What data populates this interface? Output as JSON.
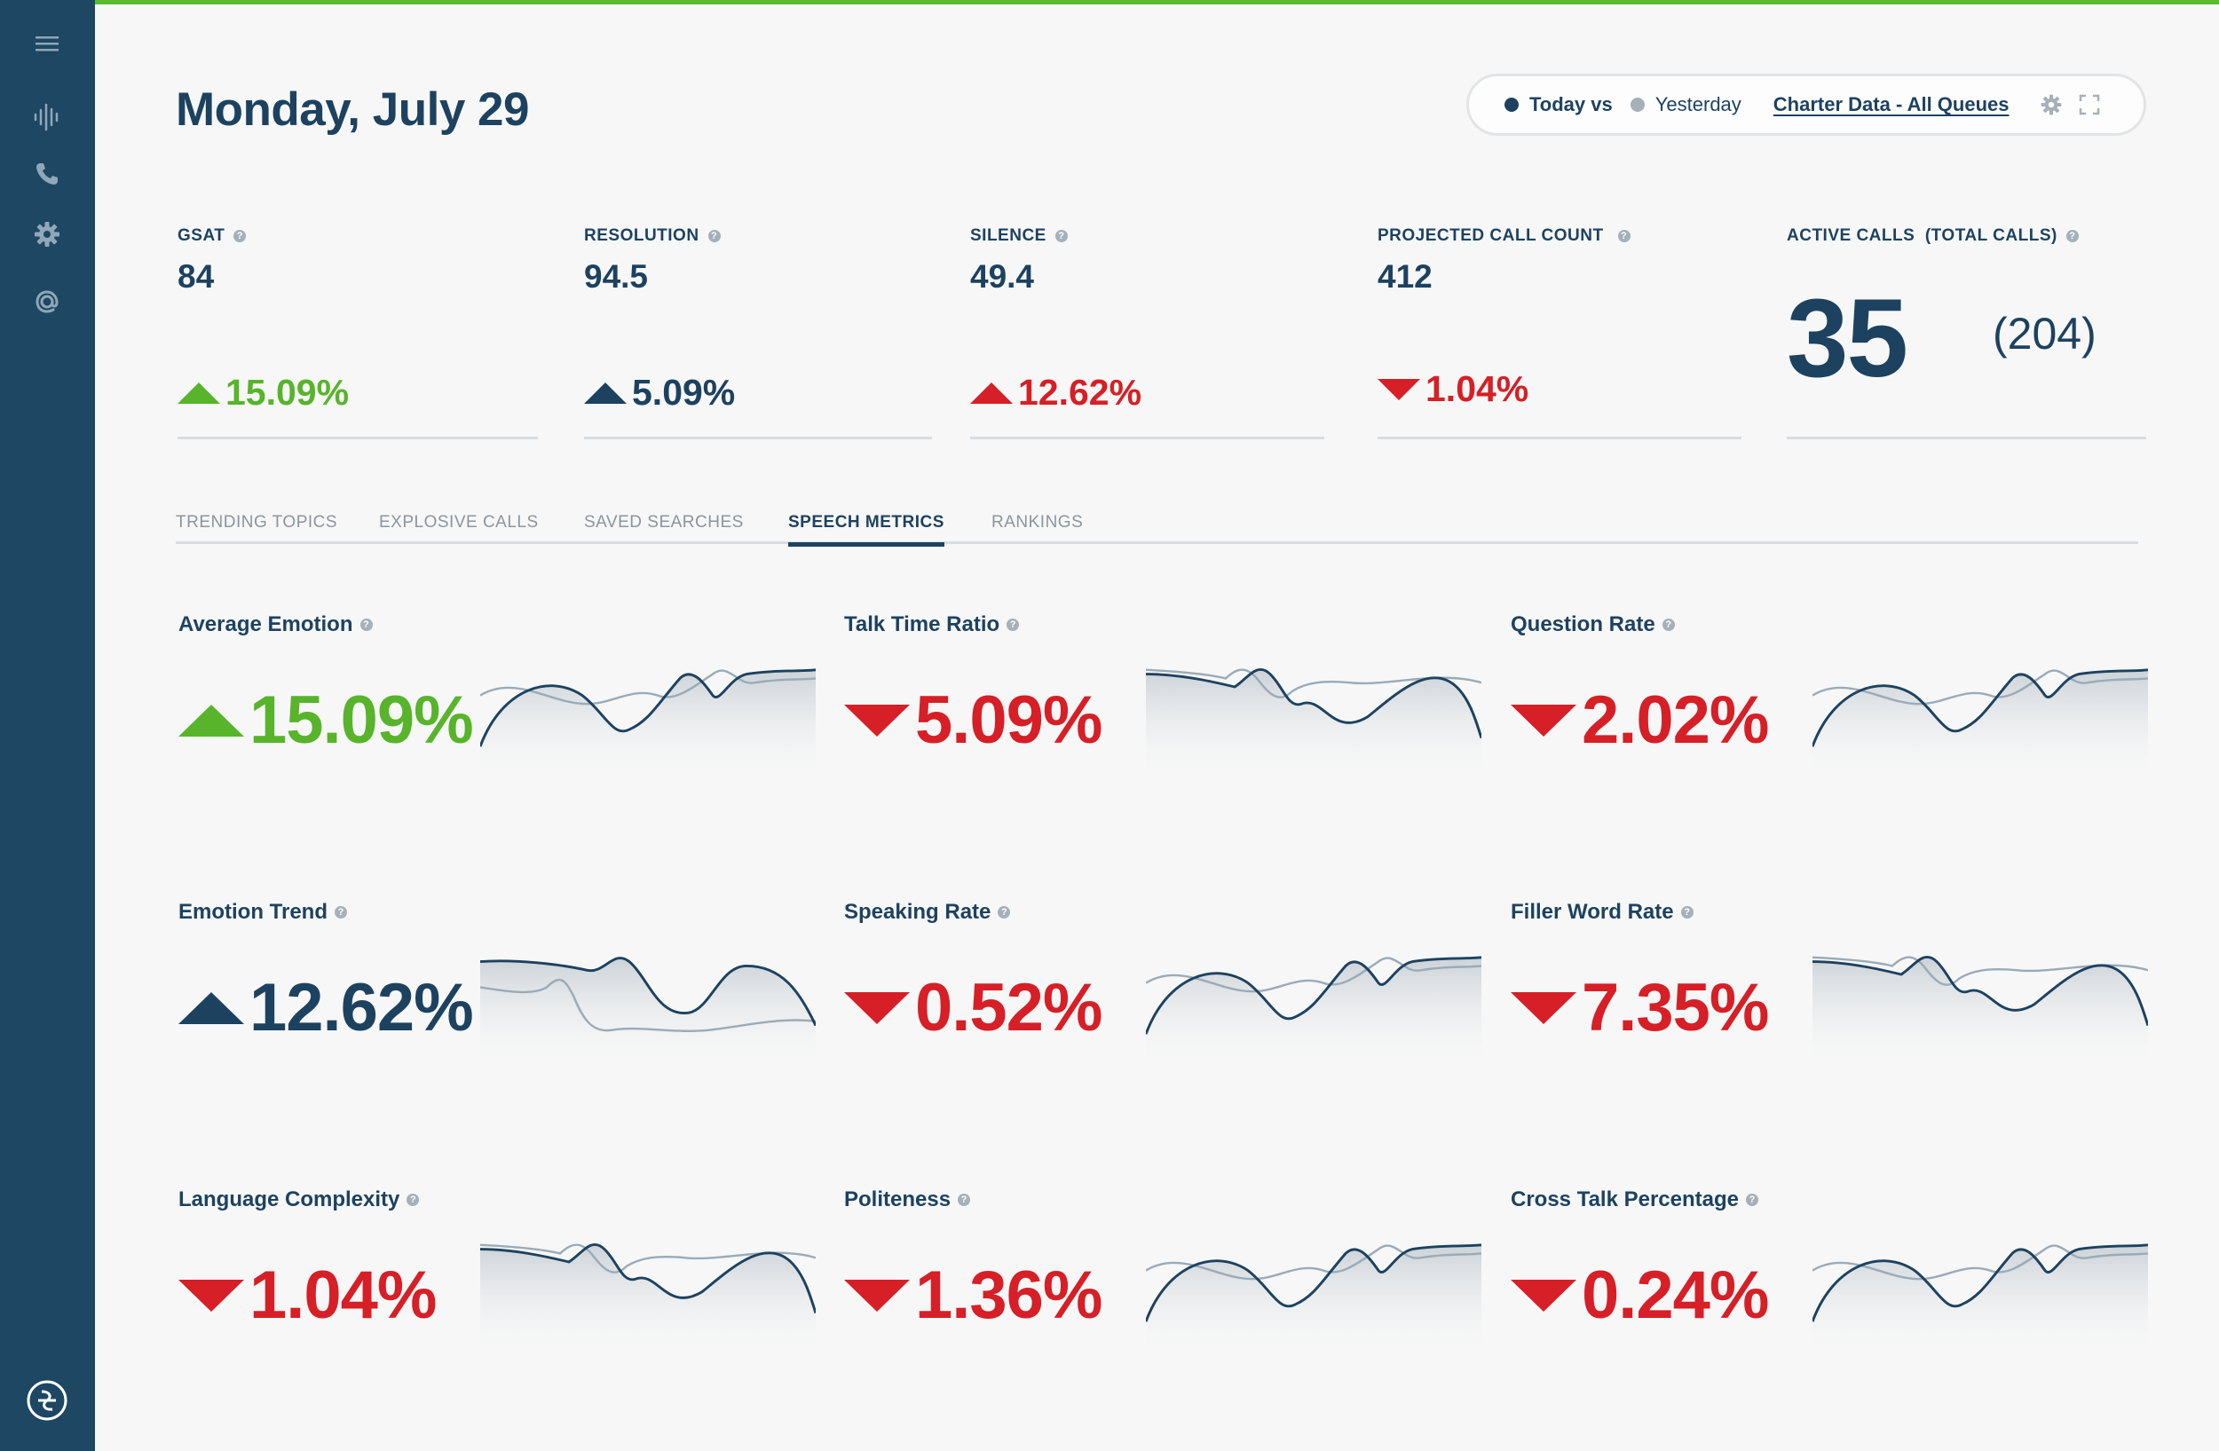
{
  "sidebar": {
    "icons": [
      "menu-icon",
      "waveform-icon",
      "phone-icon",
      "gear-icon",
      "at-icon",
      "logo-icon"
    ]
  },
  "header": {
    "title": "Monday, July 29",
    "compare": {
      "today_label": "Today vs",
      "yesterday_label": "Yesterday",
      "queue_label": "Charter Data - All Queues"
    },
    "colors": {
      "today": "#1d4260",
      "yesterday": "#a6b0b8",
      "accent": "#5bbb2e"
    }
  },
  "kpis": [
    {
      "label": "GSAT",
      "value": "84",
      "change": "15.09%",
      "direction": "up",
      "color": "#57b42b"
    },
    {
      "label": "RESOLUTION",
      "value": "94.5",
      "change": "5.09%",
      "direction": "up",
      "color": "#1d4260"
    },
    {
      "label": "SILENCE",
      "value": "49.4",
      "change": "12.62%",
      "direction": "up",
      "color": "#d61f26"
    },
    {
      "label": "PROJECTED CALL COUNT",
      "value": "412",
      "change": "1.04%",
      "direction": "down",
      "color": "#d61f26"
    }
  ],
  "active_calls": {
    "label": "ACTIVE CALLS  (TOTAL CALLS)",
    "active": "35",
    "total": "(204)"
  },
  "tabs": [
    {
      "label": "TRENDING TOPICS",
      "active": false
    },
    {
      "label": "EXPLOSIVE CALLS",
      "active": false
    },
    {
      "label": "SAVED SEARCHES",
      "active": false
    },
    {
      "label": "SPEECH METRICS",
      "active": true
    },
    {
      "label": "RANKINGS",
      "active": false
    }
  ],
  "metrics": [
    {
      "title": "Average Emotion",
      "value": "15.09%",
      "direction": "up",
      "color": "#57b42b",
      "variant": "a"
    },
    {
      "title": "Talk Time Ratio",
      "value": "5.09%",
      "direction": "down",
      "color": "#d61f26",
      "variant": "b"
    },
    {
      "title": "Question Rate",
      "value": "2.02%",
      "direction": "down",
      "color": "#d61f26",
      "variant": "a"
    },
    {
      "title": "Emotion Trend",
      "value": "12.62%",
      "direction": "up",
      "color": "#1d4260",
      "variant": "c"
    },
    {
      "title": "Speaking Rate",
      "value": "0.52%",
      "direction": "down",
      "color": "#d61f26",
      "variant": "a"
    },
    {
      "title": "Filler Word Rate",
      "value": "7.35%",
      "direction": "down",
      "color": "#d61f26",
      "variant": "b"
    },
    {
      "title": "Language Complexity",
      "value": "1.04%",
      "direction": "down",
      "color": "#d61f26",
      "variant": "b"
    },
    {
      "title": "Politeness",
      "value": "1.36%",
      "direction": "down",
      "color": "#d61f26",
      "variant": "a"
    },
    {
      "title": "Cross Talk Percentage",
      "value": "0.24%",
      "direction": "down",
      "color": "#d61f26",
      "variant": "a"
    }
  ]
}
